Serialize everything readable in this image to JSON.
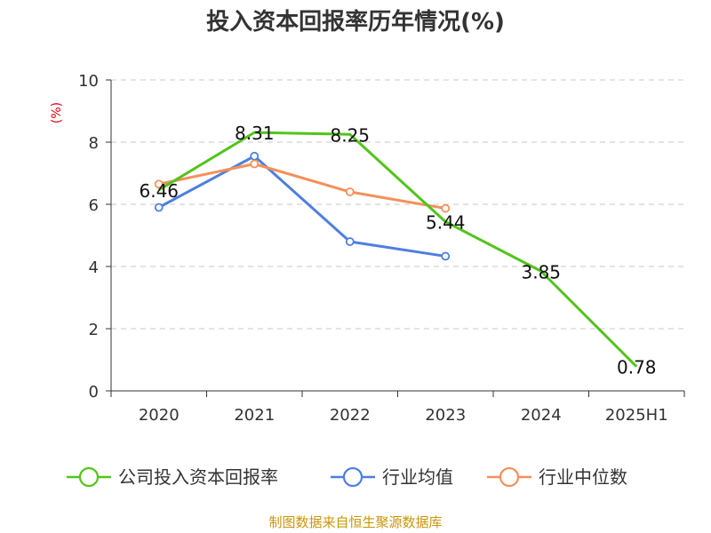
{
  "chart_data": {
    "type": "line",
    "title": "投入资本回报率历年情况(%)",
    "ylabel": "(%)",
    "categories": [
      "2020",
      "2021",
      "2022",
      "2023",
      "2024",
      "2025H1"
    ],
    "ylim": [
      0,
      10
    ],
    "yticks": [
      0,
      2,
      4,
      6,
      8,
      10
    ],
    "grid": true,
    "legend_position": "bottom",
    "series": [
      {
        "name": "公司投入资本回报率",
        "color": "#52c41a",
        "values": [
          6.46,
          8.31,
          8.25,
          5.44,
          3.85,
          0.78
        ],
        "labels": [
          "6.46",
          "8.31",
          "8.25",
          "5.44",
          "3.85",
          "0.78"
        ],
        "show_markers": false,
        "show_labels": true
      },
      {
        "name": "行业均值",
        "color": "#4e7fde",
        "values": [
          5.9,
          7.55,
          4.8,
          4.33,
          null,
          null
        ],
        "show_markers": true,
        "show_labels": false
      },
      {
        "name": "行业中位数",
        "color": "#f4905a",
        "values": [
          6.65,
          7.3,
          6.4,
          5.87,
          null,
          null
        ],
        "show_markers": true,
        "show_labels": false
      }
    ],
    "source": "制图数据来自恒生聚源数据库"
  }
}
